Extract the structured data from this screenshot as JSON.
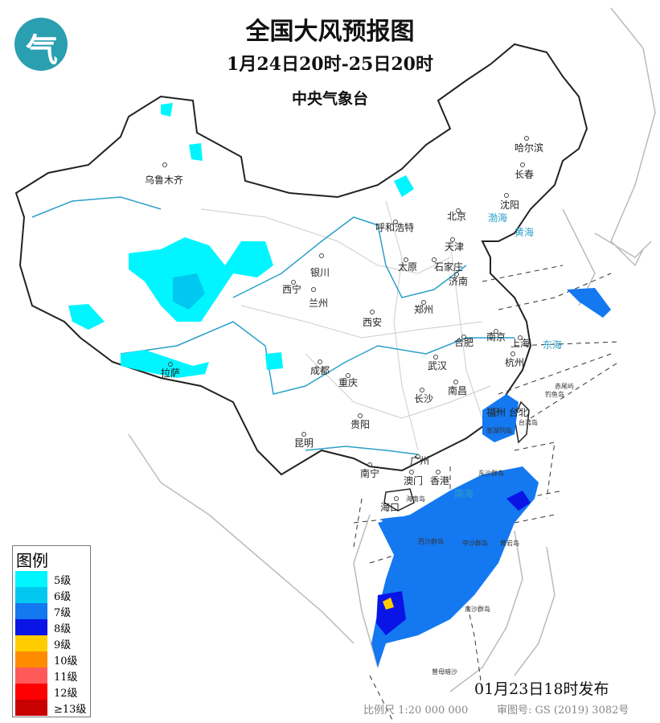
{
  "header": {
    "title": "全国大风预报图",
    "period": "1月24日20时-25日20时",
    "agency": "中央气象台"
  },
  "logo": {
    "icon": "cma-logo-icon",
    "color": "#2a9fb0"
  },
  "legend": {
    "title": "图例",
    "items": [
      {
        "label": "5级",
        "color": "#00f5ff"
      },
      {
        "label": "6级",
        "color": "#00c8f0"
      },
      {
        "label": "7级",
        "color": "#1478f0"
      },
      {
        "label": "8级",
        "color": "#0a14e6"
      },
      {
        "label": "9级",
        "color": "#ffcc00"
      },
      {
        "label": "10级",
        "color": "#ff8c00"
      },
      {
        "label": "11级",
        "color": "#ff5a5a"
      },
      {
        "label": "12级",
        "color": "#ff0000"
      },
      {
        "label": "≥13级",
        "color": "#c80000"
      }
    ]
  },
  "cities": [
    "乌鲁木齐",
    "哈尔滨",
    "长春",
    "沈阳",
    "北京",
    "天津",
    "呼和浩特",
    "银川",
    "太原",
    "石家庄",
    "济南",
    "西宁",
    "兰州",
    "郑州",
    "西安",
    "合肥",
    "南京",
    "上海",
    "杭州",
    "武汉",
    "成都",
    "重庆",
    "长沙",
    "南昌",
    "拉萨",
    "福州",
    "台北",
    "贵阳",
    "昆明",
    "南宁",
    "广州",
    "澳门",
    "香港",
    "海口"
  ],
  "seas": [
    "渤海",
    "黄海",
    "东海",
    "南海"
  ],
  "islands": [
    "海南岛",
    "台湾岛",
    "澎湖列岛",
    "赤尾屿",
    "钓鱼岛",
    "东沙群岛",
    "西沙群岛",
    "中沙群岛",
    "黄岩岛",
    "南沙群岛",
    "曾母暗沙"
  ],
  "footer": {
    "issued": "01月23日18时发布",
    "scale": "比例尺 1:20 000 000",
    "approval": "审图号: GS (2019) 3082号"
  }
}
